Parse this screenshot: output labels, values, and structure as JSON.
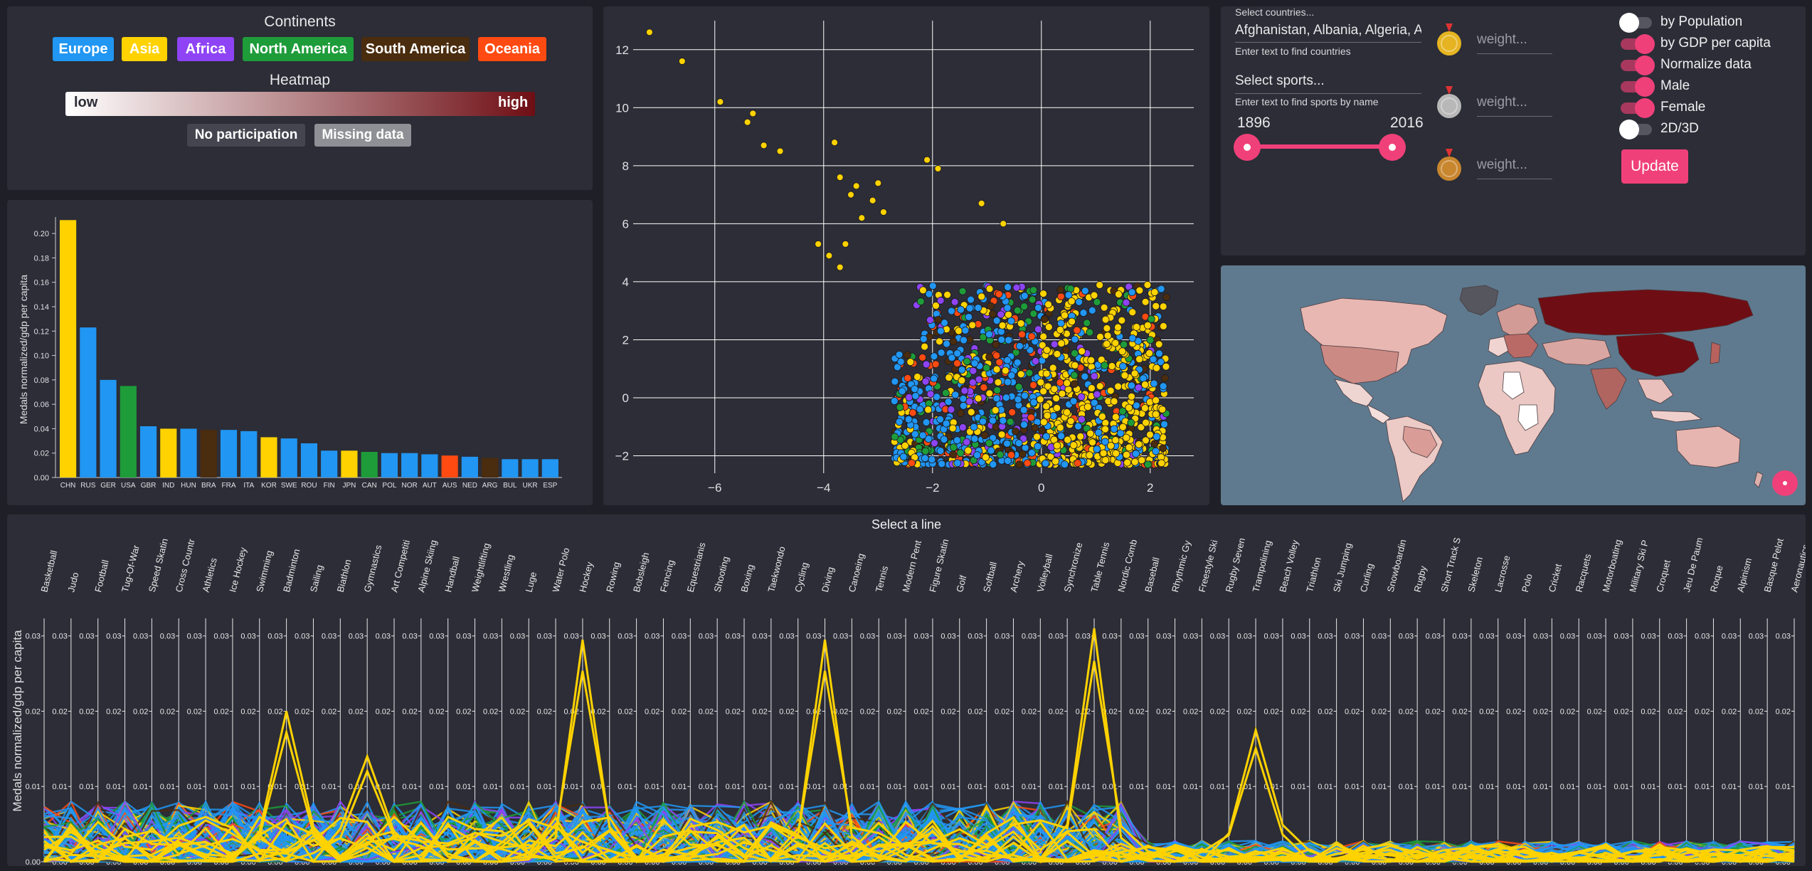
{
  "legend": {
    "title": "Continents",
    "continents": [
      {
        "name": "Europe",
        "color": "#2196f3"
      },
      {
        "name": "Asia",
        "color": "#ffd200"
      },
      {
        "name": "Africa",
        "color": "#8e44f5"
      },
      {
        "name": "North America",
        "color": "#1e9c3a"
      },
      {
        "name": "South America",
        "color": "#4a2c0e"
      },
      {
        "name": "Oceania",
        "color": "#ff4b12"
      }
    ],
    "heatmap_title": "Heatmap",
    "heatmap_low": "low",
    "heatmap_high": "high",
    "heatmap_low_color": "#ffffff",
    "heatmap_high_color": "#6e0e14",
    "no_participation": "No participation",
    "missing_data": "Missing data"
  },
  "controls": {
    "countries_label": "Select countries...",
    "countries_value": "Afghanistan, Albania, Algeria, A",
    "countries_hint": "Enter text to find countries",
    "sports_placeholder": "Select sports...",
    "sports_hint": "Enter text to find sports by name",
    "year_start": "1896",
    "year_end": "2016",
    "year_range_selected": [
      1896,
      2016
    ],
    "medal_weight_placeholder": "weight...",
    "medal_icons": [
      "gold-medal-icon",
      "silver-medal-icon",
      "bronze-medal-icon"
    ],
    "toggles": [
      {
        "label": "by Population",
        "on": false
      },
      {
        "label": "by GDP per capita",
        "on": true
      },
      {
        "label": "Normalize data",
        "on": true
      },
      {
        "label": "Male",
        "on": true
      },
      {
        "label": "Female",
        "on": true
      },
      {
        "label": "2D/3D",
        "on": false
      }
    ],
    "update_label": "Update",
    "accent_color": "#f0407a"
  },
  "chart_data": [
    {
      "type": "bar",
      "ylabel": "Medals normalized/gdp per capita",
      "ylim": [
        0,
        0.21
      ],
      "yticks": [
        "0.00",
        "0.02",
        "0.04",
        "0.06",
        "0.08",
        "0.10",
        "0.12",
        "0.14",
        "0.16",
        "0.18",
        "0.20"
      ],
      "categories": [
        "CHN",
        "RUS",
        "GER",
        "USA",
        "GBR",
        "IND",
        "HUN",
        "BRA",
        "FRA",
        "ITA",
        "KOR",
        "SWE",
        "ROU",
        "FIN",
        "JPN",
        "CAN",
        "POL",
        "NOR",
        "AUT",
        "AUS",
        "NED",
        "ARG",
        "BUL",
        "UKR",
        "ESP"
      ],
      "values": [
        0.211,
        0.123,
        0.08,
        0.075,
        0.042,
        0.04,
        0.04,
        0.039,
        0.039,
        0.038,
        0.033,
        0.032,
        0.028,
        0.022,
        0.022,
        0.021,
        0.02,
        0.02,
        0.019,
        0.018,
        0.017,
        0.016,
        0.015,
        0.015,
        0.015
      ],
      "continents": [
        "Asia",
        "Europe",
        "Europe",
        "North America",
        "Europe",
        "Asia",
        "Europe",
        "South America",
        "Europe",
        "Europe",
        "Asia",
        "Europe",
        "Europe",
        "Europe",
        "Asia",
        "North America",
        "Europe",
        "Europe",
        "Europe",
        "Oceania",
        "Europe",
        "South America",
        "Europe",
        "Europe",
        "Europe"
      ]
    },
    {
      "type": "scatter",
      "xlim": [
        -7.5,
        2.8
      ],
      "ylim": [
        -2.6,
        13.0
      ],
      "xticks": [
        "−6",
        "−4",
        "−2",
        "0",
        "2"
      ],
      "yticks": [
        "−2",
        "0",
        "2",
        "4",
        "6",
        "8",
        "10",
        "12"
      ],
      "notable_points": [
        [
          -7.2,
          12.6
        ],
        [
          -6.6,
          11.6
        ],
        [
          -5.9,
          10.2
        ],
        [
          -5.3,
          9.8
        ],
        [
          -5.4,
          9.5
        ],
        [
          -5.1,
          8.7
        ],
        [
          -4.8,
          8.5
        ],
        [
          -3.8,
          8.8
        ],
        [
          -3.7,
          7.6
        ],
        [
          -3.4,
          7.3
        ],
        [
          -3.0,
          7.4
        ],
        [
          -3.5,
          7.0
        ],
        [
          -3.1,
          6.8
        ],
        [
          -2.9,
          6.4
        ],
        [
          -3.3,
          6.2
        ],
        [
          -2.1,
          8.2
        ],
        [
          -1.9,
          7.9
        ],
        [
          -1.1,
          6.7
        ],
        [
          -0.7,
          6.0
        ],
        [
          -3.6,
          5.3
        ],
        [
          -4.1,
          5.3
        ],
        [
          -3.9,
          4.9
        ],
        [
          -3.7,
          4.5
        ]
      ],
      "cluster": {
        "x_range": [
          -2.7,
          2.3
        ],
        "y_range": [
          -2.3,
          3.9
        ]
      }
    },
    {
      "type": "line",
      "title": "Select a line",
      "ylabel": "Medals normalized/gdp per capita",
      "ylim": [
        0,
        0.03
      ],
      "axis_ticks": [
        "0.00",
        "0.01",
        "0.02",
        "0.03"
      ],
      "sports": [
        "Basketball",
        "Judo",
        "Football",
        "Tug-Of-War",
        "Speed Skatin",
        "Cross Countr",
        "Athletics",
        "Ice Hockey",
        "Swimming",
        "Badminton",
        "Sailing",
        "Biathlon",
        "Gymnastics",
        "Art Competiti",
        "Alpine Skiing",
        "Handball",
        "Weightlifting",
        "Wrestling",
        "Luge",
        "Water Polo",
        "Hockey",
        "Rowing",
        "Bobsleigh",
        "Fencing",
        "Equestrianis",
        "Shooting",
        "Boxing",
        "Taekwondo",
        "Cycling",
        "Diving",
        "Canoeing",
        "Tennis",
        "Modern Pent",
        "Figure Skatin",
        "Golf",
        "Softball",
        "Archery",
        "Volleyball",
        "Synchronize",
        "Table Tennis",
        "Nordic Comb",
        "Baseball",
        "Rhythmic Gy",
        "Freestyle Ski",
        "Rugby Seven",
        "Trampolining",
        "Beach Volley",
        "Triathlon",
        "Ski Jumping",
        "Curling",
        "Snowboardin",
        "Rugby",
        "Short Track S",
        "Skeleton",
        "Lacrosse",
        "Polo",
        "Cricket",
        "Racquets",
        "Motorboating",
        "Military Ski P",
        "Croquet",
        "Jeu De Paum",
        "Roque",
        "Alpinism",
        "Basque Pelot",
        "Aeronautics"
      ],
      "highlight_peaks": [
        {
          "sport": "Hockey",
          "value": 0.0295,
          "continent": "Asia"
        },
        {
          "sport": "Diving",
          "value": 0.0295,
          "continent": "Asia"
        },
        {
          "sport": "Table Tennis",
          "value": 0.031,
          "continent": "Asia"
        },
        {
          "sport": "Badminton",
          "value": 0.02,
          "continent": "Asia"
        },
        {
          "sport": "Gymnastics",
          "value": 0.014,
          "continent": "Asia"
        },
        {
          "sport": "Trampolining",
          "value": 0.0175,
          "continent": "Asia"
        }
      ]
    }
  ]
}
